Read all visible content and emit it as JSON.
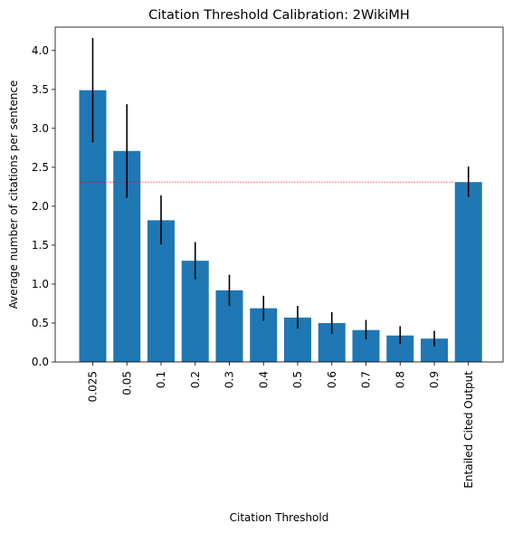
{
  "chart_data": {
    "type": "bar",
    "title": "Citation Threshold Calibration: 2WikiMH",
    "xlabel": "Citation Threshold",
    "ylabel": "Average number of citations per sentence",
    "categories": [
      "0.025",
      "0.05",
      "0.1",
      "0.2",
      "0.3",
      "0.4",
      "0.5",
      "0.6",
      "0.7",
      "0.8",
      "0.9",
      "Entailed Cited Output"
    ],
    "values": [
      3.49,
      2.71,
      1.82,
      1.3,
      0.92,
      0.69,
      0.57,
      0.5,
      0.41,
      0.34,
      0.3,
      2.31
    ],
    "error_low": [
      2.82,
      2.11,
      1.51,
      1.06,
      0.72,
      0.53,
      0.43,
      0.36,
      0.29,
      0.23,
      0.2,
      2.12
    ],
    "error_high": [
      4.16,
      3.31,
      2.14,
      1.54,
      1.12,
      0.85,
      0.72,
      0.64,
      0.54,
      0.46,
      0.4,
      2.51
    ],
    "reference_line": 2.31,
    "ylim": [
      0,
      4.3
    ],
    "yticks": [
      0.0,
      0.5,
      1.0,
      1.5,
      2.0,
      2.5,
      3.0,
      3.5,
      4.0
    ],
    "ytick_labels": [
      "0.0",
      "0.5",
      "1.0",
      "1.5",
      "2.0",
      "2.5",
      "3.0",
      "3.5",
      "4.0"
    ],
    "grid": false,
    "colors": {
      "bar": "#1f77b4",
      "error": "#000000",
      "reference_line": "#ff0000"
    }
  }
}
